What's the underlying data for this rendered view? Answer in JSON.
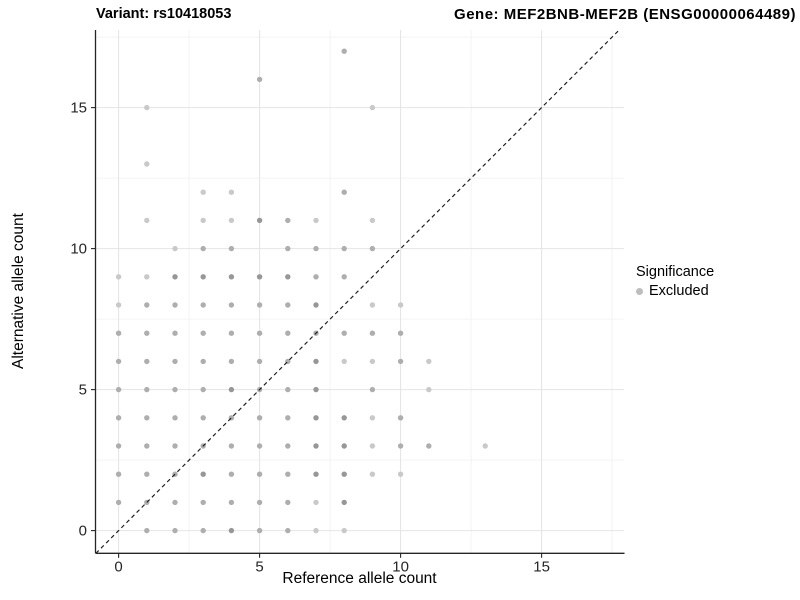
{
  "titles": {
    "variant": "Variant: rs10418053",
    "gene": "Gene: MEF2BNB-MEF2B (ENSG00000064489)"
  },
  "chart_data": {
    "type": "scatter",
    "title_left": "Variant: rs10418053",
    "title_right": "Gene: MEF2BNB-MEF2B (ENSG00000064489)",
    "xlabel": "Reference allele count",
    "ylabel": "Alternative allele count",
    "xlim": [
      -0.85,
      17.9
    ],
    "ylim": [
      -0.8,
      17.8
    ],
    "x_ticks": [
      0,
      5,
      10,
      15
    ],
    "y_ticks": [
      0,
      5,
      10,
      15
    ],
    "x_minor_gridlines": [
      2.5,
      7.5,
      12.5,
      17.5
    ],
    "y_minor_gridlines": [
      2.5,
      7.5,
      12.5,
      17.5
    ],
    "grid": true,
    "identity_line": {
      "equation": "y = x",
      "style": "dashed",
      "color": "#1a1a1a"
    },
    "legend": {
      "position": "right",
      "title": "Significance",
      "items": [
        {
          "label": "Excluded",
          "color": "#bdbdbd"
        }
      ]
    },
    "point_shade_colors": {
      "l": "#c9c9c9",
      "m": "#aeaeae",
      "d": "#979797"
    },
    "points": [
      [
        1,
        0,
        "m"
      ],
      [
        2,
        0,
        "m"
      ],
      [
        3,
        0,
        "m"
      ],
      [
        4,
        0,
        "d"
      ],
      [
        5,
        0,
        "m"
      ],
      [
        6,
        0,
        "m"
      ],
      [
        7,
        0,
        "l"
      ],
      [
        8,
        0,
        "l"
      ],
      [
        0,
        1,
        "m"
      ],
      [
        1,
        1,
        "m"
      ],
      [
        2,
        1,
        "m"
      ],
      [
        3,
        1,
        "m"
      ],
      [
        4,
        1,
        "m"
      ],
      [
        5,
        1,
        "m"
      ],
      [
        6,
        1,
        "m"
      ],
      [
        7,
        1,
        "l"
      ],
      [
        8,
        1,
        "d"
      ],
      [
        0,
        2,
        "m"
      ],
      [
        1,
        2,
        "m"
      ],
      [
        2,
        2,
        "m"
      ],
      [
        3,
        2,
        "d"
      ],
      [
        4,
        2,
        "m"
      ],
      [
        5,
        2,
        "m"
      ],
      [
        6,
        2,
        "m"
      ],
      [
        7,
        2,
        "d"
      ],
      [
        8,
        2,
        "d"
      ],
      [
        9,
        2,
        "l"
      ],
      [
        10,
        2,
        "l"
      ],
      [
        0,
        3,
        "m"
      ],
      [
        1,
        3,
        "m"
      ],
      [
        2,
        3,
        "m"
      ],
      [
        3,
        3,
        "m"
      ],
      [
        4,
        3,
        "m"
      ],
      [
        5,
        3,
        "m"
      ],
      [
        6,
        3,
        "m"
      ],
      [
        7,
        3,
        "d"
      ],
      [
        8,
        3,
        "d"
      ],
      [
        9,
        3,
        "l"
      ],
      [
        10,
        3,
        "m"
      ],
      [
        11,
        3,
        "m"
      ],
      [
        13,
        3,
        "l"
      ],
      [
        0,
        4,
        "m"
      ],
      [
        1,
        4,
        "m"
      ],
      [
        2,
        4,
        "m"
      ],
      [
        3,
        4,
        "m"
      ],
      [
        4,
        4,
        "m"
      ],
      [
        5,
        4,
        "m"
      ],
      [
        6,
        4,
        "m"
      ],
      [
        7,
        4,
        "d"
      ],
      [
        8,
        4,
        "d"
      ],
      [
        9,
        4,
        "l"
      ],
      [
        10,
        4,
        "m"
      ],
      [
        0,
        5,
        "m"
      ],
      [
        1,
        5,
        "m"
      ],
      [
        2,
        5,
        "m"
      ],
      [
        3,
        5,
        "m"
      ],
      [
        4,
        5,
        "d"
      ],
      [
        5,
        5,
        "m"
      ],
      [
        6,
        5,
        "m"
      ],
      [
        7,
        5,
        "d"
      ],
      [
        9,
        5,
        "m"
      ],
      [
        11,
        5,
        "l"
      ],
      [
        0,
        6,
        "m"
      ],
      [
        1,
        6,
        "m"
      ],
      [
        2,
        6,
        "m"
      ],
      [
        3,
        6,
        "m"
      ],
      [
        4,
        6,
        "m"
      ],
      [
        5,
        6,
        "m"
      ],
      [
        6,
        6,
        "m"
      ],
      [
        7,
        6,
        "d"
      ],
      [
        8,
        6,
        "l"
      ],
      [
        9,
        6,
        "l"
      ],
      [
        10,
        6,
        "m"
      ],
      [
        11,
        6,
        "l"
      ],
      [
        0,
        7,
        "m"
      ],
      [
        1,
        7,
        "m"
      ],
      [
        2,
        7,
        "m"
      ],
      [
        3,
        7,
        "m"
      ],
      [
        4,
        7,
        "m"
      ],
      [
        5,
        7,
        "m"
      ],
      [
        6,
        7,
        "m"
      ],
      [
        7,
        7,
        "m"
      ],
      [
        8,
        7,
        "m"
      ],
      [
        9,
        7,
        "m"
      ],
      [
        10,
        7,
        "m"
      ],
      [
        0,
        8,
        "l"
      ],
      [
        1,
        8,
        "m"
      ],
      [
        2,
        8,
        "m"
      ],
      [
        3,
        8,
        "m"
      ],
      [
        4,
        8,
        "m"
      ],
      [
        5,
        8,
        "m"
      ],
      [
        6,
        8,
        "m"
      ],
      [
        7,
        8,
        "d"
      ],
      [
        9,
        8,
        "l"
      ],
      [
        10,
        8,
        "l"
      ],
      [
        0,
        9,
        "l"
      ],
      [
        1,
        9,
        "l"
      ],
      [
        2,
        9,
        "d"
      ],
      [
        3,
        9,
        "d"
      ],
      [
        4,
        9,
        "d"
      ],
      [
        5,
        9,
        "d"
      ],
      [
        6,
        9,
        "d"
      ],
      [
        7,
        9,
        "m"
      ],
      [
        8,
        9,
        "m"
      ],
      [
        2,
        10,
        "l"
      ],
      [
        3,
        10,
        "m"
      ],
      [
        4,
        10,
        "m"
      ],
      [
        6,
        10,
        "m"
      ],
      [
        7,
        10,
        "m"
      ],
      [
        8,
        10,
        "m"
      ],
      [
        9,
        10,
        "m"
      ],
      [
        1,
        11,
        "l"
      ],
      [
        3,
        11,
        "l"
      ],
      [
        4,
        11,
        "l"
      ],
      [
        5,
        11,
        "d"
      ],
      [
        6,
        11,
        "m"
      ],
      [
        7,
        11,
        "l"
      ],
      [
        9,
        11,
        "l"
      ],
      [
        3,
        12,
        "l"
      ],
      [
        4,
        12,
        "l"
      ],
      [
        8,
        12,
        "m"
      ],
      [
        1,
        13,
        "l"
      ],
      [
        1,
        15,
        "l"
      ],
      [
        9,
        15,
        "l"
      ],
      [
        5,
        16,
        "m"
      ],
      [
        8,
        17,
        "m"
      ]
    ],
    "colors": {
      "axis_line": "#262626",
      "tick_label": "#262626",
      "major_gridline": "#e4e4e4",
      "minor_gridline": "#f0f0f0",
      "background": "#ffffff"
    }
  }
}
